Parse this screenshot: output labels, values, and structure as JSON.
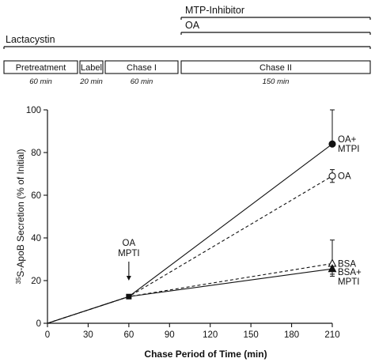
{
  "protocol": {
    "treatments": [
      "MTP-Inhibitor",
      "OA",
      "Lactacystin"
    ],
    "phases": [
      {
        "label": "Pretreatment",
        "duration": "60 min"
      },
      {
        "label": "Label",
        "duration": "20 min"
      },
      {
        "label": "Chase I",
        "duration": "60 min"
      },
      {
        "label": "Chase II",
        "duration": "150 min"
      }
    ]
  },
  "chart_data": {
    "type": "line",
    "title": "",
    "xlabel": "Chase Period of Time (min)",
    "ylabel_superscript": "35",
    "ylabel": "S-ApoB Secretion (% of Initial)",
    "xlim": [
      0,
      210
    ],
    "ylim": [
      0,
      100
    ],
    "xticks": [
      0,
      30,
      60,
      90,
      120,
      150,
      180,
      210
    ],
    "yticks": [
      0,
      20,
      40,
      60,
      80,
      100
    ],
    "grid": false,
    "annotation": {
      "label_line1": "OA",
      "label_line2": "MPTI",
      "x": 60
    },
    "series": [
      {
        "name_line1": "OA+",
        "name_line2": "MTPI",
        "marker": "filled-circle",
        "dash": "solid",
        "x": [
          0,
          60,
          210
        ],
        "y": [
          0,
          12.5,
          84
        ],
        "error_210": [
          84,
          100
        ]
      },
      {
        "name_line1": "OA",
        "name_line2": "",
        "marker": "open-circle",
        "dash": "dashed",
        "x": [
          0,
          60,
          210
        ],
        "y": [
          0,
          12.5,
          69
        ],
        "error_210": [
          66,
          72
        ]
      },
      {
        "name_line1": "BSA",
        "name_line2": "",
        "marker": "open-triangle",
        "dash": "dashed",
        "x": [
          0,
          60,
          210
        ],
        "y": [
          0,
          12.5,
          28
        ],
        "error_210": [
          22,
          39
        ]
      },
      {
        "name_line1": "BSA+",
        "name_line2": "MPTI",
        "marker": "filled-triangle",
        "dash": "solid",
        "x": [
          0,
          60,
          210
        ],
        "y": [
          0,
          12.5,
          25.5
        ],
        "error_210": [
          23,
          28
        ]
      }
    ]
  }
}
